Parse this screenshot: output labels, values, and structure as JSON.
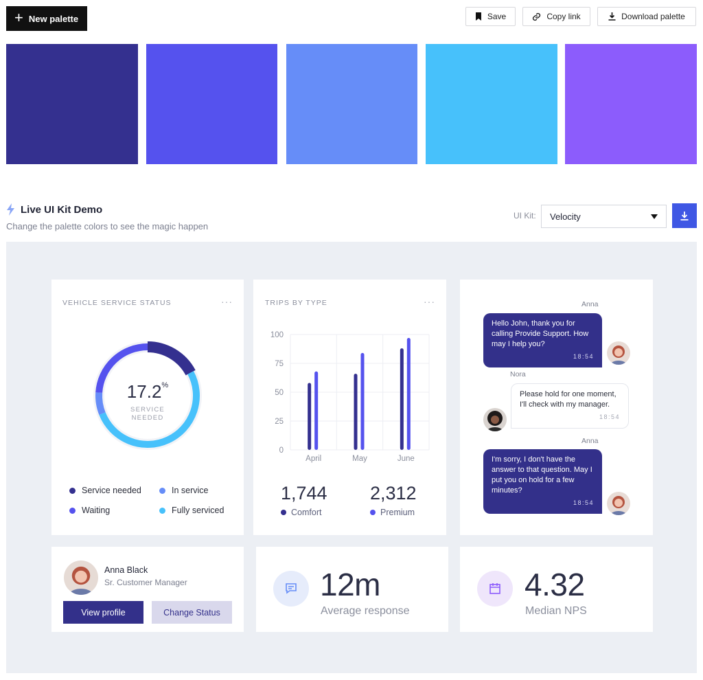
{
  "toolbar": {
    "new_palette_label": "New palette",
    "save_label": "Save",
    "copy_link_label": "Copy link",
    "download_label": "Download palette"
  },
  "palette": {
    "colors": [
      "#34308f",
      "#5552ee",
      "#668df8",
      "#47c1fb",
      "#8c5cfc"
    ]
  },
  "demo": {
    "title": "Live UI Kit Demo",
    "subtitle": "Change the palette colors to see the magic happen",
    "ui_kit_label": "UI Kit:",
    "ui_kit_value": "Velocity"
  },
  "service_card": {
    "title": "VEHICLE SERVICE STATUS",
    "menu": "···",
    "percent": "17.2",
    "percent_unit": "%",
    "center_line1": "SERVICE",
    "center_line2": "NEEDED",
    "legend": [
      {
        "label": "Service needed",
        "color": "#34308f"
      },
      {
        "label": "In service",
        "color": "#668df8"
      },
      {
        "label": "Waiting",
        "color": "#5552ee"
      },
      {
        "label": "Fully serviced",
        "color": "#47c1fb"
      }
    ],
    "donut_fractions": [
      0.172,
      0.07,
      0.24,
      0.518
    ]
  },
  "trips_card": {
    "title": "TRIPS BY TYPE",
    "menu": "···",
    "comfort_value": "1,744",
    "comfort_label": "Comfort",
    "premium_value": "2,312",
    "premium_label": "Premium",
    "comfort_color": "#34308f",
    "premium_color": "#5552ee"
  },
  "chart_data": {
    "type": "bar",
    "title": "TRIPS BY TYPE",
    "categories": [
      "April",
      "May",
      "June"
    ],
    "series": [
      {
        "name": "Comfort",
        "values": [
          58,
          66,
          88
        ]
      },
      {
        "name": "Premium",
        "values": [
          68,
          84,
          97
        ]
      }
    ],
    "y_ticks": [
      "100",
      "75",
      "50",
      "25",
      "0"
    ],
    "ylim": [
      0,
      100
    ],
    "grid": true
  },
  "chat": {
    "messages": [
      {
        "sender": "Anna",
        "text": "Hello John, thank you for calling Provide Support. How may I help you?",
        "time": "18:54"
      },
      {
        "sender": "Nora",
        "text": "Please hold for one moment, I'll check with my manager.",
        "time": "18:54"
      },
      {
        "sender": "Anna",
        "text": "I'm sorry, I don't have the answer to that question. May I put you on hold for a few minutes?",
        "time": "18:54"
      }
    ]
  },
  "profile": {
    "name": "Anna Black",
    "role": "Sr. Customer Manager",
    "view_label": "View profile",
    "status_label": "Change Status"
  },
  "kpis": {
    "response_value": "12m",
    "response_label": "Average response",
    "nps_value": "4.32",
    "nps_label": "Median NPS"
  }
}
